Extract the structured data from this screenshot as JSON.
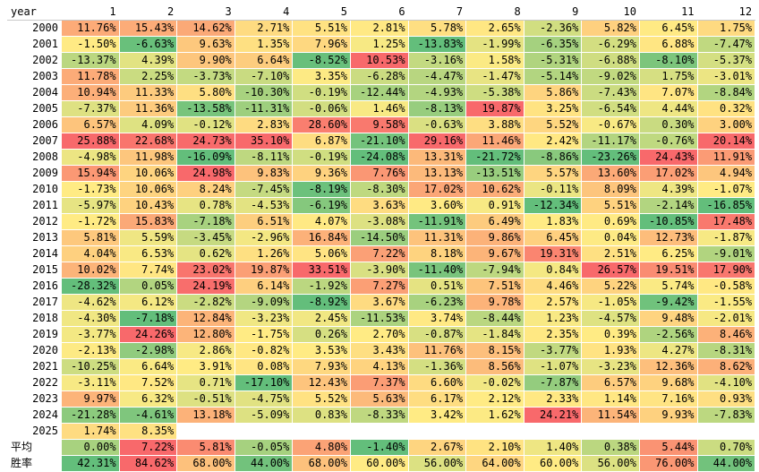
{
  "corner_label": "year",
  "months": [
    "1",
    "2",
    "3",
    "4",
    "5",
    "6",
    "7",
    "8",
    "9",
    "10",
    "11",
    "12"
  ],
  "rows": [
    {
      "label": "2000",
      "cells": [
        "11.76%",
        "15.43%",
        "14.62%",
        "2.71%",
        "5.51%",
        "2.81%",
        "5.78%",
        "2.65%",
        "-2.36%",
        "5.82%",
        "6.45%",
        "1.75%"
      ]
    },
    {
      "label": "2001",
      "cells": [
        "-1.50%",
        "-6.63%",
        "9.63%",
        "1.35%",
        "7.96%",
        "1.25%",
        "-13.83%",
        "-1.99%",
        "-6.35%",
        "-6.29%",
        "6.88%",
        "-7.47%"
      ]
    },
    {
      "label": "2002",
      "cells": [
        "-13.37%",
        "4.39%",
        "9.90%",
        "6.64%",
        "-8.52%",
        "10.53%",
        "-3.16%",
        "1.58%",
        "-5.31%",
        "-6.88%",
        "-8.10%",
        "-5.37%"
      ]
    },
    {
      "label": "2003",
      "cells": [
        "11.78%",
        "2.25%",
        "-3.73%",
        "-7.10%",
        "3.35%",
        "-6.28%",
        "-4.47%",
        "-1.47%",
        "-5.14%",
        "-9.02%",
        "1.75%",
        "-3.01%"
      ]
    },
    {
      "label": "2004",
      "cells": [
        "10.94%",
        "11.33%",
        "5.80%",
        "-10.30%",
        "-0.19%",
        "-12.44%",
        "-4.93%",
        "-5.38%",
        "5.86%",
        "-7.43%",
        "7.07%",
        "-8.84%"
      ]
    },
    {
      "label": "2005",
      "cells": [
        "-7.37%",
        "11.36%",
        "-13.58%",
        "-11.31%",
        "-0.06%",
        "1.46%",
        "-8.13%",
        "19.87%",
        "3.25%",
        "-6.54%",
        "4.44%",
        "0.32%"
      ]
    },
    {
      "label": "2006",
      "cells": [
        "6.57%",
        "4.09%",
        "-0.12%",
        "2.83%",
        "28.60%",
        "9.58%",
        "-0.63%",
        "3.88%",
        "5.52%",
        "-0.67%",
        "0.30%",
        "3.00%"
      ]
    },
    {
      "label": "2007",
      "cells": [
        "25.88%",
        "22.68%",
        "24.73%",
        "35.10%",
        "6.87%",
        "-21.10%",
        "29.16%",
        "11.46%",
        "2.42%",
        "-11.17%",
        "-0.76%",
        "20.14%"
      ]
    },
    {
      "label": "2008",
      "cells": [
        "-4.98%",
        "11.98%",
        "-16.09%",
        "-8.11%",
        "-0.19%",
        "-24.08%",
        "13.31%",
        "-21.72%",
        "-8.86%",
        "-23.26%",
        "24.43%",
        "11.91%"
      ]
    },
    {
      "label": "2009",
      "cells": [
        "15.94%",
        "10.06%",
        "24.98%",
        "9.83%",
        "9.36%",
        "7.76%",
        "13.13%",
        "-13.51%",
        "5.57%",
        "13.60%",
        "17.02%",
        "4.94%"
      ]
    },
    {
      "label": "2010",
      "cells": [
        "-1.73%",
        "10.06%",
        "8.24%",
        "-7.45%",
        "-8.19%",
        "-8.30%",
        "17.02%",
        "10.62%",
        "-0.11%",
        "8.09%",
        "4.39%",
        "-1.07%"
      ]
    },
    {
      "label": "2011",
      "cells": [
        "-5.97%",
        "10.43%",
        "0.78%",
        "-4.53%",
        "-6.19%",
        "3.63%",
        "3.60%",
        "0.91%",
        "-12.34%",
        "5.51%",
        "-2.14%",
        "-16.85%"
      ]
    },
    {
      "label": "2012",
      "cells": [
        "-1.72%",
        "15.83%",
        "-7.18%",
        "6.51%",
        "4.07%",
        "-3.08%",
        "-11.91%",
        "6.49%",
        "1.83%",
        "0.69%",
        "-10.85%",
        "17.48%"
      ]
    },
    {
      "label": "2013",
      "cells": [
        "5.81%",
        "5.59%",
        "-3.45%",
        "-2.96%",
        "16.84%",
        "-14.50%",
        "11.31%",
        "9.86%",
        "6.45%",
        "0.04%",
        "12.73%",
        "-1.87%"
      ]
    },
    {
      "label": "2014",
      "cells": [
        "4.04%",
        "6.53%",
        "0.62%",
        "1.26%",
        "5.06%",
        "7.22%",
        "8.18%",
        "9.67%",
        "19.31%",
        "2.51%",
        "6.25%",
        "-9.01%"
      ]
    },
    {
      "label": "2015",
      "cells": [
        "10.02%",
        "7.74%",
        "23.02%",
        "19.87%",
        "33.51%",
        "-3.90%",
        "-11.40%",
        "-7.94%",
        "0.84%",
        "26.57%",
        "19.51%",
        "17.90%"
      ]
    },
    {
      "label": "2016",
      "cells": [
        "-28.32%",
        "0.05%",
        "24.19%",
        "6.14%",
        "-1.92%",
        "7.27%",
        "0.51%",
        "7.51%",
        "4.46%",
        "5.22%",
        "5.74%",
        "-0.58%"
      ]
    },
    {
      "label": "2017",
      "cells": [
        "-4.62%",
        "6.12%",
        "-2.82%",
        "-9.09%",
        "-8.92%",
        "3.67%",
        "-6.23%",
        "9.78%",
        "2.57%",
        "-1.05%",
        "-9.42%",
        "-1.55%"
      ]
    },
    {
      "label": "2018",
      "cells": [
        "-4.30%",
        "-7.18%",
        "12.84%",
        "-3.23%",
        "2.45%",
        "-11.53%",
        "3.74%",
        "-8.44%",
        "1.23%",
        "-4.57%",
        "9.48%",
        "-2.01%"
      ]
    },
    {
      "label": "2019",
      "cells": [
        "-3.77%",
        "24.26%",
        "12.80%",
        "-1.75%",
        "0.26%",
        "2.70%",
        "-0.87%",
        "-1.84%",
        "2.35%",
        "0.39%",
        "-2.56%",
        "8.46%"
      ]
    },
    {
      "label": "2020",
      "cells": [
        "-2.13%",
        "-2.98%",
        "2.86%",
        "-0.82%",
        "3.53%",
        "3.43%",
        "11.76%",
        "8.15%",
        "-3.77%",
        "1.93%",
        "4.27%",
        "-8.31%"
      ]
    },
    {
      "label": "2021",
      "cells": [
        "-10.25%",
        "6.64%",
        "3.91%",
        "0.08%",
        "7.93%",
        "4.13%",
        "-1.36%",
        "8.56%",
        "-1.07%",
        "-3.23%",
        "12.36%",
        "8.62%"
      ]
    },
    {
      "label": "2022",
      "cells": [
        "-3.11%",
        "7.52%",
        "0.71%",
        "-17.10%",
        "12.43%",
        "7.37%",
        "6.60%",
        "-0.02%",
        "-7.87%",
        "6.57%",
        "9.68%",
        "-4.10%"
      ]
    },
    {
      "label": "2023",
      "cells": [
        "9.97%",
        "6.32%",
        "-0.51%",
        "-4.75%",
        "5.52%",
        "5.63%",
        "6.17%",
        "2.12%",
        "2.33%",
        "1.14%",
        "7.16%",
        "0.93%"
      ]
    },
    {
      "label": "2024",
      "cells": [
        "-21.28%",
        "-4.61%",
        "13.18%",
        "-5.09%",
        "0.83%",
        "-8.33%",
        "3.42%",
        "1.62%",
        "24.21%",
        "11.54%",
        "9.93%",
        "-7.83%"
      ]
    },
    {
      "label": "2025",
      "cells": [
        "1.74%",
        "8.35%",
        "",
        "",
        "",
        "",
        "",
        "",
        "",
        "",
        "",
        ""
      ]
    }
  ],
  "summary_rows": [
    {
      "label": "平均",
      "cells": [
        "0.00%",
        "7.22%",
        "5.81%",
        "-0.05%",
        "4.80%",
        "-1.40%",
        "2.67%",
        "2.10%",
        "1.40%",
        "0.38%",
        "5.44%",
        "0.70%"
      ]
    },
    {
      "label": "胜率",
      "cells": [
        "42.31%",
        "84.62%",
        "68.00%",
        "44.00%",
        "68.00%",
        "60.00%",
        "56.00%",
        "64.00%",
        "60.00%",
        "56.00%",
        "76.00%",
        "44.00%"
      ]
    }
  ],
  "colors": {
    "high": "#f8696b",
    "mid": "#ffeb84",
    "low": "#63be7b",
    "empty": "#ffffff"
  }
}
